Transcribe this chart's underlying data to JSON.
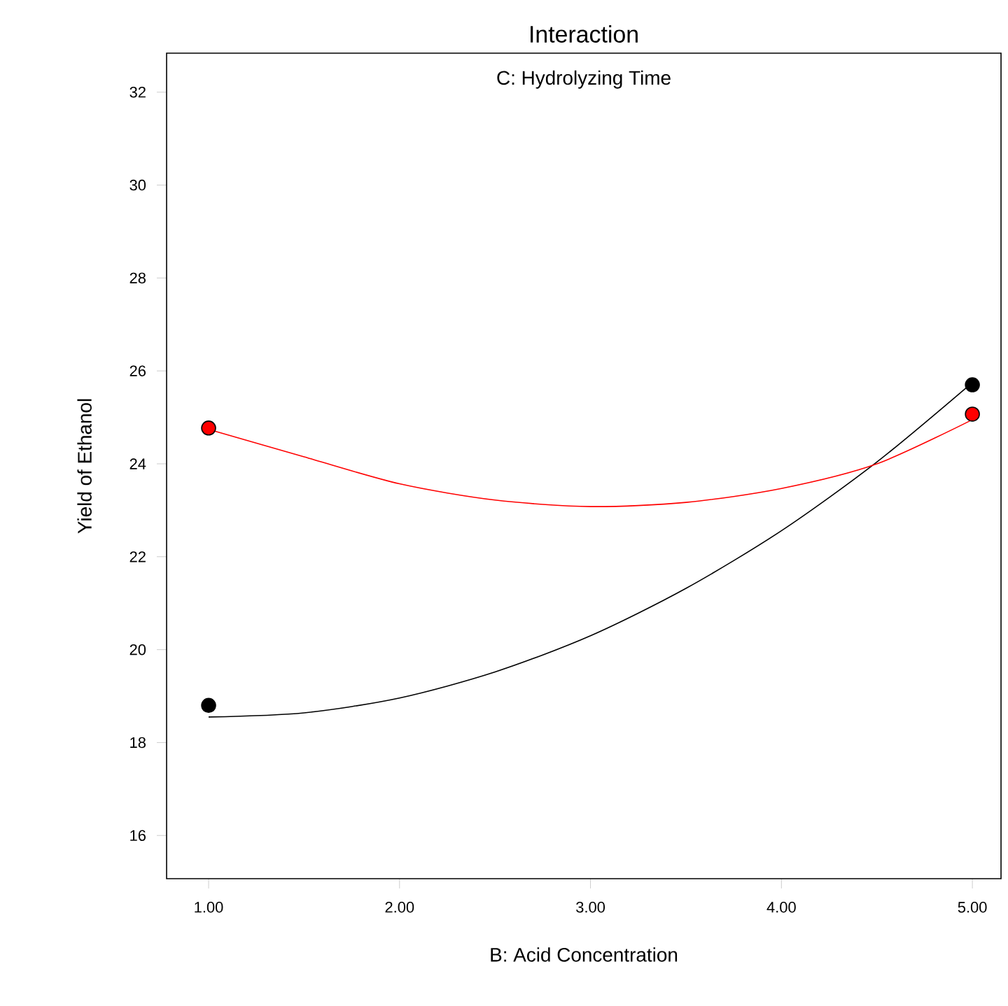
{
  "chart_data": {
    "type": "line",
    "title": "Interaction",
    "subtitle": "C: Hydrolyzing Time",
    "xlabel": "B: Acid Concentration",
    "ylabel": "Yield of Ethanol",
    "xlim": [
      0.78,
      5.15
    ],
    "ylim": [
      15.07,
      32.84
    ],
    "xticks": [
      {
        "value": 1,
        "label": "1.00"
      },
      {
        "value": 2,
        "label": "2.00"
      },
      {
        "value": 3,
        "label": "3.00"
      },
      {
        "value": 4,
        "label": "4.00"
      },
      {
        "value": 5,
        "label": "5.00"
      }
    ],
    "yticks": [
      16,
      18,
      20,
      22,
      24,
      26,
      28,
      30,
      32
    ],
    "grid": false,
    "series": [
      {
        "color": "#000000",
        "x": [
          1,
          1.5,
          2,
          2.5,
          3,
          3.5,
          4,
          4.5,
          5
        ],
        "values": [
          18.55,
          18.64,
          18.96,
          19.52,
          20.3,
          21.32,
          22.56,
          24.04,
          25.75
        ]
      },
      {
        "color": "#ff0000",
        "x": [
          1,
          1.5,
          2,
          2.5,
          3,
          3.5,
          4,
          4.5,
          5
        ],
        "values": [
          24.74,
          24.15,
          23.57,
          23.22,
          23.08,
          23.17,
          23.47,
          24.0,
          24.95
        ]
      },
      {
        "type": "scatter",
        "color": "#000000",
        "marker": "circle",
        "x": [
          1,
          5
        ],
        "values": [
          18.8,
          25.7
        ]
      },
      {
        "type": "scatter",
        "color": "#ff0000",
        "marker": "circle",
        "x": [
          1,
          5
        ],
        "values": [
          24.77,
          25.07
        ]
      }
    ]
  }
}
